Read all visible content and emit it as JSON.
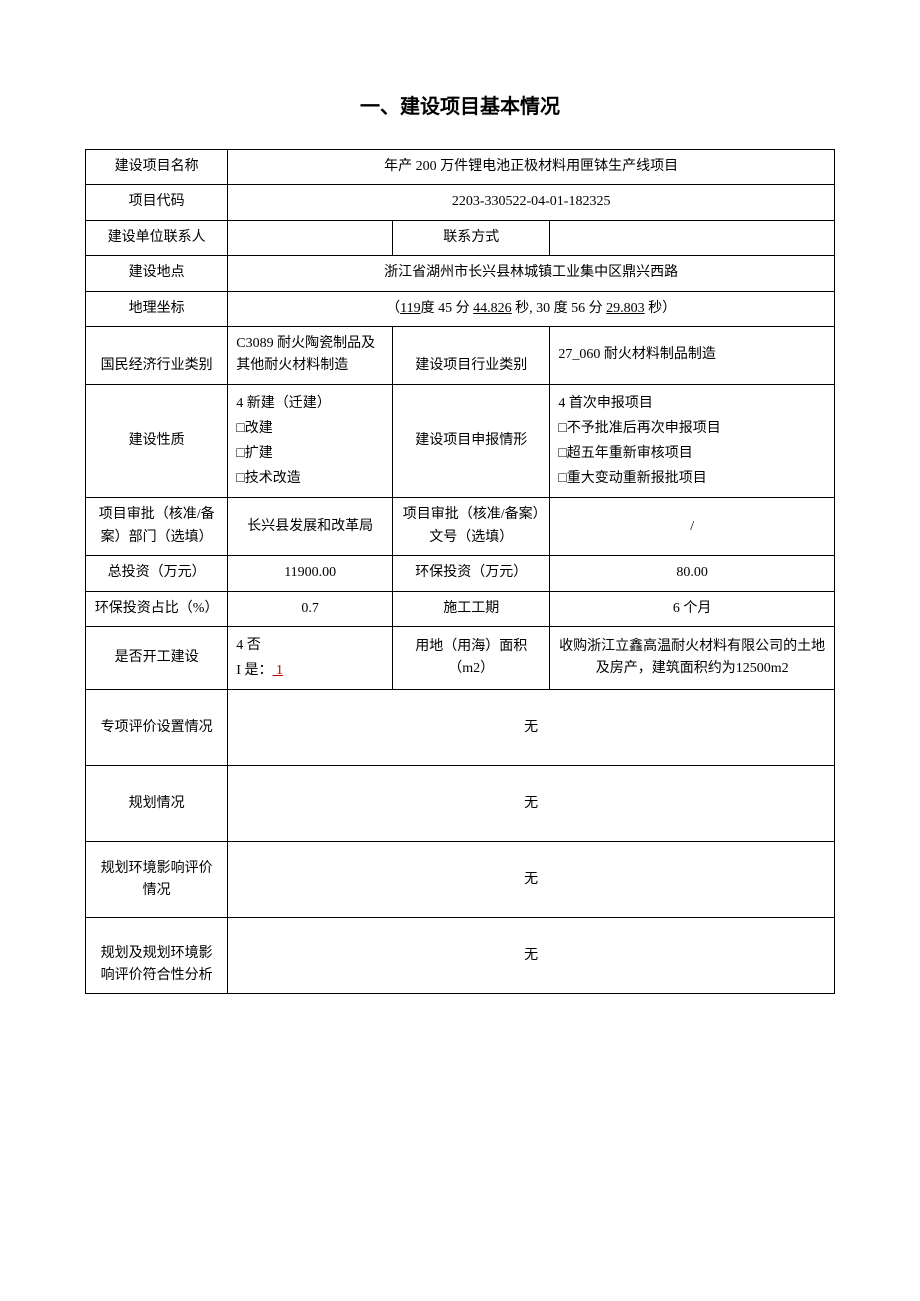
{
  "title": "一、建设项目基本情况",
  "rows": {
    "project_name": {
      "label": "建设项目名称",
      "value": "年产 200 万件锂电池正极材料用匣钵生产线项目"
    },
    "project_code": {
      "label": "项目代码",
      "value": "2203-330522-04-01-182325"
    },
    "contact_person": {
      "label": "建设单位联系人",
      "value": ""
    },
    "contact_method": {
      "label": "联系方式",
      "value": ""
    },
    "location": {
      "label": "建设地点",
      "value": "浙江省湖州市长兴县林城镇工业集中区鼎兴西路"
    },
    "coordinates": {
      "label": "地理坐标",
      "lng_deg": "119",
      "lng_min": "度 45 分",
      "lng_sec": "44.826",
      "sec_label": "秒, 30 度 56 分",
      "lat_sec": "29.803",
      "end": "秒）"
    },
    "industry_category": {
      "label": "国民经济行业类别",
      "value": "C3089 耐火陶瓷制品及其他耐火材料制造"
    },
    "project_industry": {
      "label": "建设项目行业类别",
      "value": "27_060 耐火材料制品制造"
    },
    "construction_nature": {
      "label": "建设性质",
      "opt1": "4 新建（迁建）",
      "opt2": "□改建",
      "opt3": "□扩建",
      "opt4": "□技术改造"
    },
    "declaration_type": {
      "label": "建设项目申报情形",
      "opt1": "4 首次申报项目",
      "opt2": "□不予批准后再次申报项目",
      "opt3": "□超五年重新审核项目",
      "opt4": "□重大变动重新报批项目"
    },
    "approval_dept": {
      "label": "项目审批（核准/备案）部门（选填）",
      "value": "长兴县发展和改革局"
    },
    "approval_number": {
      "label": "项目审批（核准/备案）文号（选填）",
      "value": "/"
    },
    "total_investment": {
      "label": "总投资（万元）",
      "value": "11900.00"
    },
    "env_investment": {
      "label": "环保投资（万元）",
      "value": "80.00"
    },
    "env_ratio": {
      "label": "环保投资占比（%）",
      "value": "0.7"
    },
    "construction_period": {
      "label": "施工工期",
      "value": "6 个月"
    },
    "started": {
      "label": "是否开工建设",
      "opt1": "4 否",
      "opt2_prefix": "I 是：",
      "opt2_val": "  1     "
    },
    "land_area": {
      "label": "用地（用海）面积（m2）",
      "value": "收购浙江立鑫高温耐火材料有限公司的土地及房产，建筑面积约为12500m2"
    },
    "special_eval": {
      "label": "专项评价设置情况",
      "value": "无"
    },
    "planning": {
      "label": "规划情况",
      "value": "无"
    },
    "planning_eia": {
      "label": "规划环境影响评价情况",
      "value": "无"
    },
    "compliance": {
      "label": "规划及规划环境影响评价符合性分析",
      "value": "无"
    }
  }
}
